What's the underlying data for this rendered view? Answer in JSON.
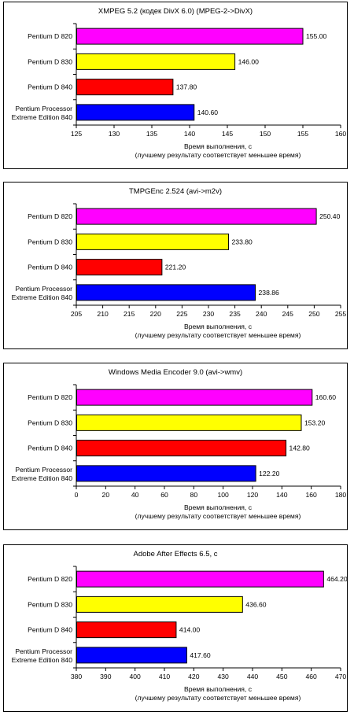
{
  "chart_data": [
    {
      "type": "bar",
      "orientation": "horizontal",
      "title": "XMPEG 5.2 (кодек DivX 6.0) (MPEG-2->DivX)",
      "categories": [
        "Pentium D 820",
        "Pentium D 830",
        "Pentium D 840",
        "Pentium Processor|Extreme Edition 840"
      ],
      "values": [
        155.0,
        146.0,
        137.8,
        140.6
      ],
      "value_labels": [
        "155.00",
        "146.00",
        "137.80",
        "140.60"
      ],
      "colors": [
        "#ff00ff",
        "#ffff00",
        "#ff0000",
        "#0000ff"
      ],
      "xlim": [
        125,
        160
      ],
      "ticks": [
        125,
        130,
        135,
        140,
        145,
        150,
        155,
        160
      ],
      "xlabel_line1": "Время выполнения, с",
      "xlabel_line2": "(лучшему результату соответствует меньшее время)",
      "grid": false,
      "legend": "none"
    },
    {
      "type": "bar",
      "orientation": "horizontal",
      "title": "TMPGEnc 2.524 (avi->m2v)",
      "categories": [
        "Pentium D 820",
        "Pentium D 830",
        "Pentium D 840",
        "Pentium Processor|Extreme Edition 840"
      ],
      "values": [
        250.4,
        233.8,
        221.2,
        238.86
      ],
      "value_labels": [
        "250.40",
        "233.80",
        "221.20",
        "238.86"
      ],
      "colors": [
        "#ff00ff",
        "#ffff00",
        "#ff0000",
        "#0000ff"
      ],
      "xlim": [
        205,
        255
      ],
      "ticks": [
        205,
        210,
        215,
        220,
        225,
        230,
        235,
        240,
        245,
        250,
        255
      ],
      "xlabel_line1": "Время выполнения, с",
      "xlabel_line2": "(лучшему результату соответствует меньшее время)",
      "grid": false,
      "legend": "none"
    },
    {
      "type": "bar",
      "orientation": "horizontal",
      "title": "Windows Media Encoder 9.0  (avi->wmv)",
      "categories": [
        "Pentium D 820",
        "Pentium D 830",
        "Pentium D 840",
        "Pentium Processor|Extreme Edition 840"
      ],
      "values": [
        160.6,
        153.2,
        142.8,
        122.2
      ],
      "value_labels": [
        "160.60",
        "153.20",
        "142.80",
        "122.20"
      ],
      "colors": [
        "#ff00ff",
        "#ffff00",
        "#ff0000",
        "#0000ff"
      ],
      "xlim": [
        0,
        180
      ],
      "ticks": [
        0,
        20,
        40,
        60,
        80,
        100,
        120,
        140,
        160,
        180
      ],
      "xlabel_line1": "Время выполнения, с",
      "xlabel_line2": "(лучшему результату соответствует меньшее время)",
      "grid": false,
      "legend": "none"
    },
    {
      "type": "bar",
      "orientation": "horizontal",
      "title": "Adobe After Effects 6.5, с",
      "categories": [
        "Pentium D 820",
        "Pentium D 830",
        "Pentium D 840",
        "Pentium Processor|Extreme Edition 840"
      ],
      "values": [
        464.2,
        436.6,
        414.0,
        417.6
      ],
      "value_labels": [
        "464.20",
        "436.60",
        "414.00",
        "417.60"
      ],
      "colors": [
        "#ff00ff",
        "#ffff00",
        "#ff0000",
        "#0000ff"
      ],
      "xlim": [
        380,
        470
      ],
      "ticks": [
        380,
        390,
        400,
        410,
        420,
        430,
        440,
        450,
        460,
        470
      ],
      "xlabel_line1": "Время выполнения, с",
      "xlabel_line2": "(лучшему результату соответствует меньшее время)",
      "grid": false,
      "legend": "none"
    }
  ]
}
